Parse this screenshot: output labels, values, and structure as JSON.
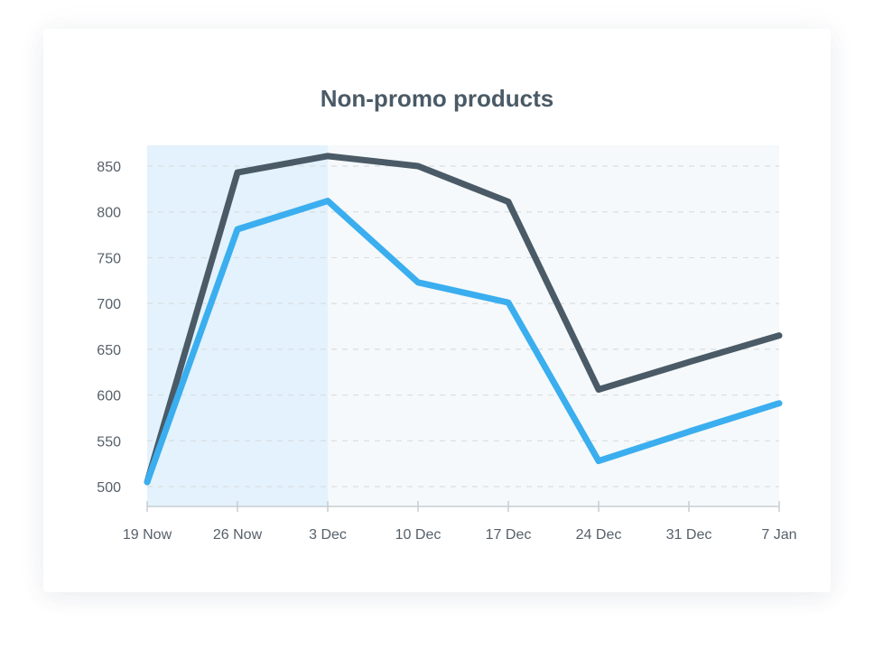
{
  "chart_data": {
    "type": "line",
    "title": "Non-promo products",
    "xlabel": "",
    "ylabel": "",
    "categories": [
      "19 Now",
      "26 Now",
      "3 Dec",
      "10 Dec",
      "17 Dec",
      "24 Dec",
      "31 Dec",
      "7 Jan"
    ],
    "yticks": [
      500,
      550,
      600,
      650,
      700,
      750,
      800,
      850
    ],
    "ylim": [
      490,
      860
    ],
    "grid": true,
    "highlight_range": [
      "19 Now",
      "3 Dec"
    ],
    "series": [
      {
        "color": "#4a5a66",
        "values": [
          505,
          843,
          861,
          850,
          811,
          606,
          636,
          665
        ]
      },
      {
        "color": "#3aaeef",
        "values": [
          505,
          781,
          812,
          723,
          701,
          528,
          560,
          591
        ]
      }
    ],
    "colors": {
      "highlight": "#e3f2fc",
      "plot_bg": "#f5f9fb",
      "grid": "#d9dee2",
      "axis": "#c7cdd2"
    }
  }
}
